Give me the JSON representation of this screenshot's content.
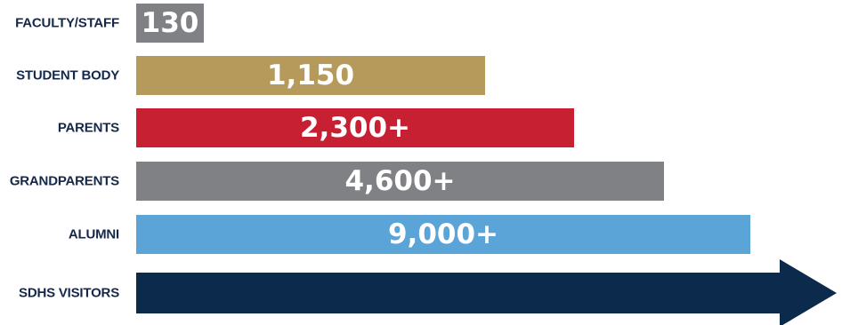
{
  "chart_data": {
    "type": "bar",
    "orientation": "horizontal",
    "categories": [
      "FACULTY/STAFF",
      "STUDENT BODY",
      "PARENTS",
      "GRANDPARENTS",
      "ALUMNI",
      "SDHS VISITORS"
    ],
    "values": [
      130,
      1150,
      2300,
      4600,
      9000,
      null
    ],
    "value_labels": [
      "130",
      "1,150",
      "2,300+",
      "4,600+",
      "9,000+",
      ""
    ],
    "colors": [
      "#808184",
      "#b59a5b",
      "#c82033",
      "#808184",
      "#5aa4d7",
      "#0c2a4b"
    ],
    "last_bar_style": "arrow",
    "grid": false,
    "legend": "none"
  }
}
